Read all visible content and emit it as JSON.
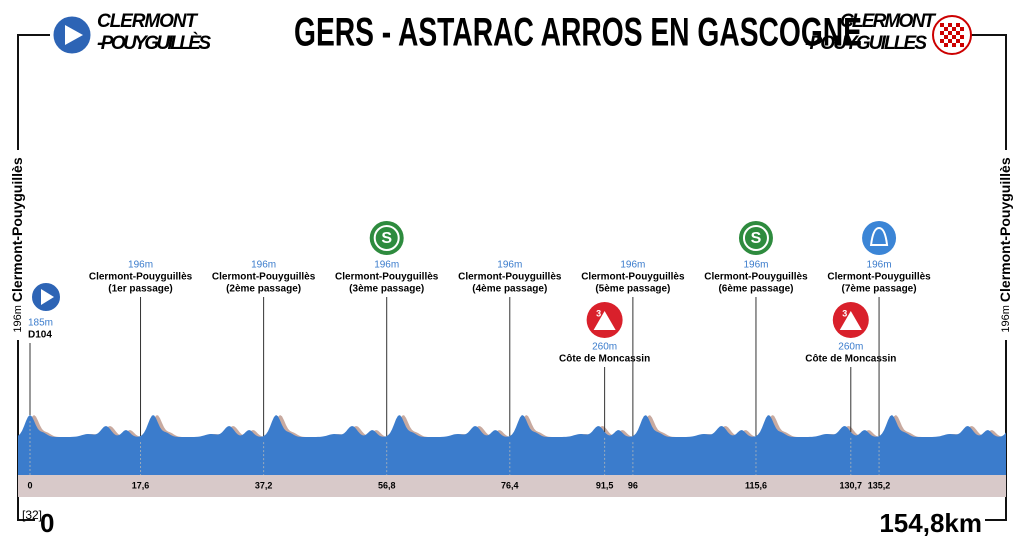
{
  "header": {
    "title": "GERS - ASTARAC ARROS EN GASCOGNE",
    "start": [
      "CLERMONT",
      "-POUYGUILLÈS"
    ],
    "finish": [
      "CLERMONT",
      "-POUYGUILLES"
    ]
  },
  "sides": {
    "left": {
      "altitude": "196m",
      "name": "Clermont-Pouyguillès"
    },
    "right": {
      "altitude": "196m",
      "name": "Clermont-Pouyguillès"
    }
  },
  "waypoints": [
    {
      "km": "0",
      "altitude": "185m",
      "name": "D104",
      "icon": {
        "kind": "start"
      }
    },
    {
      "km": "17,6",
      "altitude": "196m",
      "name": "Clermont-Pouyguillès",
      "note": "(1er passage)"
    },
    {
      "km": "37,2",
      "altitude": "196m",
      "name": "Clermont-Pouyguillès",
      "note": "(2ème passage)"
    },
    {
      "km": "56,8",
      "altitude": "196m",
      "name": "Clermont-Pouyguillès",
      "note": "(3ème passage)",
      "icon": {
        "kind": "sprint",
        "label": "S"
      }
    },
    {
      "km": "76,4",
      "altitude": "196m",
      "name": "Clermont-Pouyguillès",
      "note": "(4ème passage)"
    },
    {
      "km": "91,5",
      "altitude": "260m",
      "name": "Côte de Moncassin",
      "icon": {
        "kind": "kom",
        "label": "3"
      }
    },
    {
      "km": "96",
      "altitude": "196m",
      "name": "Clermont-Pouyguillès",
      "note": "(5ème passage)"
    },
    {
      "km": "115,6",
      "altitude": "196m",
      "name": "Clermont-Pouyguillès",
      "note": "(6ème passage)",
      "icon": {
        "kind": "sprint",
        "label": "S"
      }
    },
    {
      "km": "130,7",
      "altitude": "260m",
      "name": "Côte de Moncassin",
      "icon": {
        "kind": "kom",
        "label": "3"
      }
    },
    {
      "km": "135,2",
      "altitude": "196m",
      "name": "Clermont-Pouyguillès",
      "note": "(7ème passage)",
      "icon": {
        "kind": "bell"
      }
    }
  ],
  "footer": {
    "ref": "[32]",
    "start_km": "0",
    "distance": "154,8km"
  }
}
